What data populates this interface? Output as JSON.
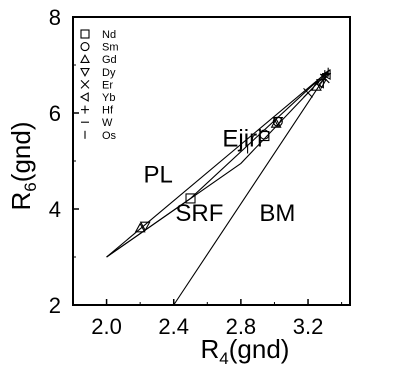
{
  "chart_data": {
    "type": "line",
    "xlabel": "R",
    "xlabel_sub": "4",
    "xlabel_suffix": "(gnd)",
    "ylabel": "R",
    "ylabel_sub": "6",
    "ylabel_suffix": "(gnd)",
    "xlim": [
      1.8,
      3.45
    ],
    "ylim": [
      2,
      8
    ],
    "xticks": [
      {
        "v": 2.0,
        "label": "2.0"
      },
      {
        "v": 2.4,
        "label": "2.4"
      },
      {
        "v": 2.8,
        "label": "2.8"
      },
      {
        "v": 3.2,
        "label": "3.2"
      }
    ],
    "yticks": [
      {
        "v": 2,
        "label": "2"
      },
      {
        "v": 4,
        "label": "4"
      },
      {
        "v": 6,
        "label": "6"
      },
      {
        "v": 8,
        "label": "8"
      }
    ],
    "series": [
      {
        "name": "Nd",
        "marker": "square",
        "x": [
          2.5,
          2.94
        ],
        "y": [
          4.22,
          5.52
        ]
      },
      {
        "name": "Sm",
        "marker": "circle",
        "x": [
          2.94,
          3.02
        ],
        "y": [
          5.55,
          5.82
        ]
      },
      {
        "name": "Gd",
        "marker": "triangle-up",
        "x": [
          2.2,
          3.01,
          3.25
        ],
        "y": [
          3.6,
          5.78,
          6.55
        ]
      },
      {
        "name": "Dy",
        "marker": "triangle-down",
        "x": [
          2.23,
          3.02,
          3.28
        ],
        "y": [
          3.65,
          5.83,
          6.62
        ]
      },
      {
        "name": "Er",
        "marker": "x",
        "x": [
          3.2,
          3.3
        ],
        "y": [
          6.42,
          6.72
        ]
      },
      {
        "name": "Yb",
        "marker": "triangle-left",
        "x": [
          3.27,
          3.31
        ],
        "y": [
          6.62,
          6.8
        ]
      },
      {
        "name": "Hf",
        "marker": "plus",
        "x": [
          3.3
        ],
        "y": [
          6.8
        ]
      },
      {
        "name": "W",
        "marker": "dash",
        "x": [
          3.31
        ],
        "y": [
          6.82
        ]
      },
      {
        "name": "Os",
        "marker": "vbar",
        "x": [
          2.84,
          3.32
        ],
        "y": [
          5.25,
          6.85
        ]
      }
    ],
    "lines": [
      {
        "name": "PL",
        "x": [
          2.0,
          2.5,
          3.32
        ],
        "y": [
          3.0,
          4.22,
          6.88
        ]
      },
      {
        "name": "Ejiri",
        "x": [
          2.0,
          3.33
        ],
        "y": [
          3.0,
          6.9
        ]
      },
      {
        "name": "SRF",
        "x": [
          2.0,
          2.8,
          3.32
        ],
        "y": [
          3.0,
          4.95,
          6.86
        ]
      },
      {
        "name": "BM",
        "x": [
          2.4,
          3.32
        ],
        "y": [
          2.0,
          6.85
        ]
      }
    ],
    "annotations": [
      {
        "text": "Ejiri",
        "x": 2.69,
        "y": 5.3
      },
      {
        "text": "PL",
        "x": 2.22,
        "y": 4.55
      },
      {
        "text": "SRF",
        "x": 2.41,
        "y": 3.75
      },
      {
        "text": "BM",
        "x": 2.91,
        "y": 3.75
      }
    ],
    "legend_position": "top-left"
  }
}
